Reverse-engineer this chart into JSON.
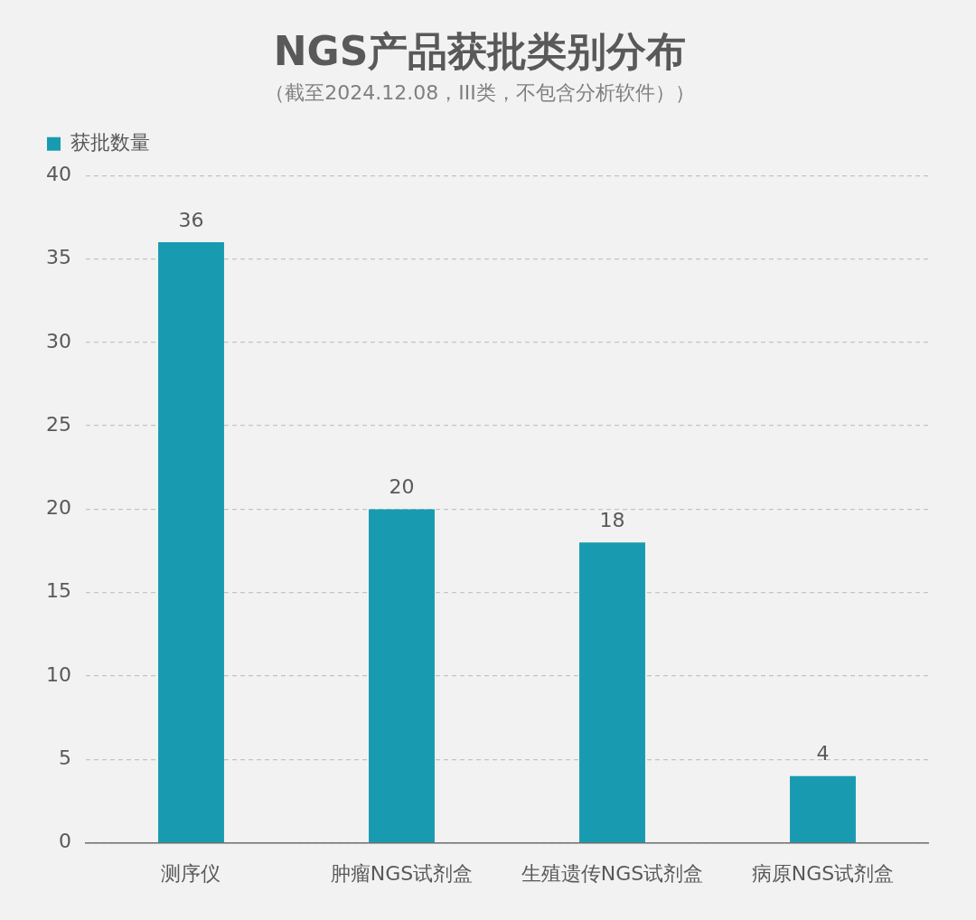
{
  "chart_data": {
    "type": "bar",
    "title": "NGS产品获批类别分布",
    "subtitle": "（截至2024.12.08，III类，不包含分析软件））",
    "categories": [
      "测序仪",
      "肿瘤NGS试剂盒",
      "生殖遗传NGS试剂盒",
      "病原NGS试剂盒"
    ],
    "series": [
      {
        "name": "获批数量",
        "color": "#189bb0",
        "values": [
          36,
          20,
          18,
          4
        ]
      }
    ],
    "ylim": [
      0,
      40
    ],
    "yticks": [
      0,
      5,
      10,
      15,
      20,
      25,
      30,
      35,
      40
    ],
    "grid": "y",
    "legend": "top left",
    "data_labels": true
  }
}
